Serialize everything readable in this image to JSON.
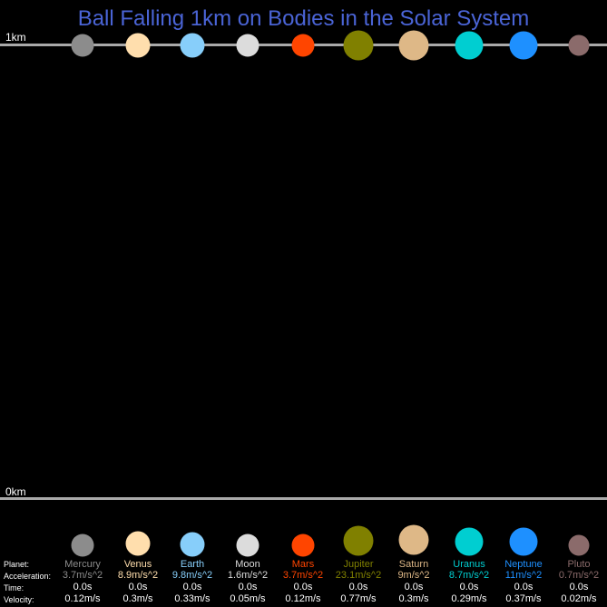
{
  "title": "Ball Falling 1km on Bodies in the Solar System",
  "scale": {
    "top_label": "1km",
    "bottom_label": "0km"
  },
  "row_labels": {
    "planet": "Planet:",
    "acceleration": "Acceleration:",
    "time": "Time:",
    "velocity": "Velocity:"
  },
  "planets": [
    {
      "name": "Mercury",
      "color": "#8c8c8c",
      "acceleration": "3.7m/s^2",
      "time": "0.0s",
      "velocity": "0.12m/s"
    },
    {
      "name": "Venus",
      "color": "#ffdead",
      "acceleration": "8.9m/s^2",
      "time": "0.0s",
      "velocity": "0.3m/s"
    },
    {
      "name": "Earth",
      "color": "#87cefa",
      "acceleration": "9.8m/s^2",
      "time": "0.0s",
      "velocity": "0.33m/s"
    },
    {
      "name": "Moon",
      "color": "#dcdcdc",
      "acceleration": "1.6m/s^2",
      "time": "0.0s",
      "velocity": "0.05m/s"
    },
    {
      "name": "Mars",
      "color": "#ff4500",
      "acceleration": "3.7m/s^2",
      "time": "0.0s",
      "velocity": "0.12m/s"
    },
    {
      "name": "Jupiter",
      "color": "#808000",
      "acceleration": "23.1m/s^2",
      "time": "0.0s",
      "velocity": "0.77m/s"
    },
    {
      "name": "Saturn",
      "color": "#deb887",
      "acceleration": "9m/s^2",
      "time": "0.0s",
      "velocity": "0.3m/s"
    },
    {
      "name": "Uranus",
      "color": "#00ced1",
      "acceleration": "8.7m/s^2",
      "time": "0.0s",
      "velocity": "0.29m/s"
    },
    {
      "name": "Neptune",
      "color": "#1e90ff",
      "acceleration": "11m/s^2",
      "time": "0.0s",
      "velocity": "0.37m/s"
    },
    {
      "name": "Pluto",
      "color": "#8b6b6b",
      "acceleration": "0.7m/s^2",
      "time": "0.0s",
      "velocity": "0.02m/s"
    }
  ]
}
